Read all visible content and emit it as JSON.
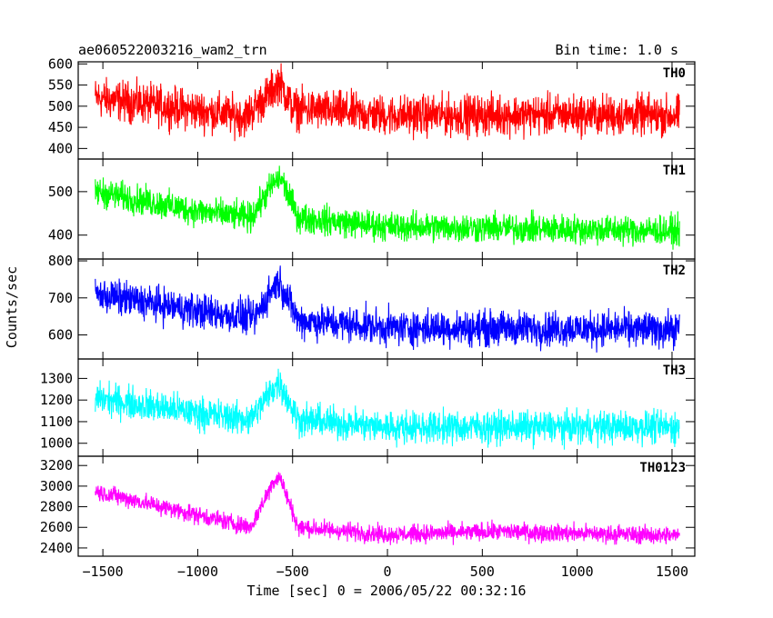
{
  "header": {
    "title": "ae060522003216_wam2_trn",
    "bin_time": "Bin time: 1.0 s"
  },
  "axes": {
    "xlabel": "Time [sec] 0 = 2006/05/22 00:32:16",
    "ylabel": "Counts/sec"
  },
  "chart_data": {
    "type": "line",
    "title": "ae060522003216_wam2_trn",
    "xlabel": "Time [sec] 0 = 2006/05/22 00:32:16",
    "ylabel": "Counts/sec",
    "xlim": [
      -1630,
      1620
    ],
    "x_ticks": [
      -1500,
      -1000,
      -500,
      0,
      500,
      1000,
      1500
    ],
    "x_range_data": [
      -1540,
      1540
    ],
    "bin_time_s": 1.0,
    "grid": false,
    "legend": "none",
    "panels": [
      {
        "name": "TH0",
        "color": "#ff0000",
        "ylim": [
          375,
          605
        ],
        "y_ticks": [
          400,
          450,
          500,
          550,
          600
        ],
        "profile": [
          [
            -1540,
            520
          ],
          [
            -1000,
            490
          ],
          [
            -750,
            475
          ],
          [
            -620,
            530
          ],
          [
            -570,
            560
          ],
          [
            -500,
            495
          ],
          [
            0,
            478
          ],
          [
            800,
            480
          ],
          [
            1540,
            478
          ]
        ],
        "noise_halfwidth": 70
      },
      {
        "name": "TH1",
        "color": "#00ff00",
        "ylim": [
          345,
          575
        ],
        "y_ticks": [
          400,
          500
        ],
        "profile": [
          [
            -1540,
            500
          ],
          [
            -1000,
            455
          ],
          [
            -720,
            440
          ],
          [
            -600,
            520
          ],
          [
            -560,
            530
          ],
          [
            -470,
            440
          ],
          [
            0,
            420
          ],
          [
            1540,
            410
          ]
        ],
        "noise_halfwidth": 50
      },
      {
        "name": "TH2",
        "color": "#0000ff",
        "ylim": [
          535,
          805
        ],
        "y_ticks": [
          600,
          700,
          800
        ],
        "profile": [
          [
            -1540,
            710
          ],
          [
            -1000,
            665
          ],
          [
            -700,
            645
          ],
          [
            -600,
            730
          ],
          [
            -570,
            745
          ],
          [
            -470,
            640
          ],
          [
            0,
            620
          ],
          [
            1540,
            615
          ]
        ],
        "noise_halfwidth": 70
      },
      {
        "name": "TH3",
        "color": "#00ffff",
        "ylim": [
          940,
          1390
        ],
        "y_ticks": [
          1000,
          1100,
          1200,
          1300
        ],
        "profile": [
          [
            -1540,
            1210
          ],
          [
            -1000,
            1140
          ],
          [
            -720,
            1110
          ],
          [
            -600,
            1260
          ],
          [
            -570,
            1280
          ],
          [
            -470,
            1110
          ],
          [
            0,
            1075
          ],
          [
            1540,
            1075
          ]
        ],
        "noise_halfwidth": 110
      },
      {
        "name": "TH0123",
        "color": "#ff00ff",
        "ylim": [
          2320,
          3290
        ],
        "y_ticks": [
          2400,
          2600,
          2800,
          3000,
          3200
        ],
        "profile": [
          [
            -1540,
            2950
          ],
          [
            -1000,
            2720
          ],
          [
            -720,
            2600
          ],
          [
            -600,
            3050
          ],
          [
            -570,
            3100
          ],
          [
            -470,
            2600
          ],
          [
            0,
            2530
          ],
          [
            600,
            2560
          ],
          [
            1540,
            2520
          ]
        ],
        "noise_halfwidth": 130
      }
    ]
  }
}
